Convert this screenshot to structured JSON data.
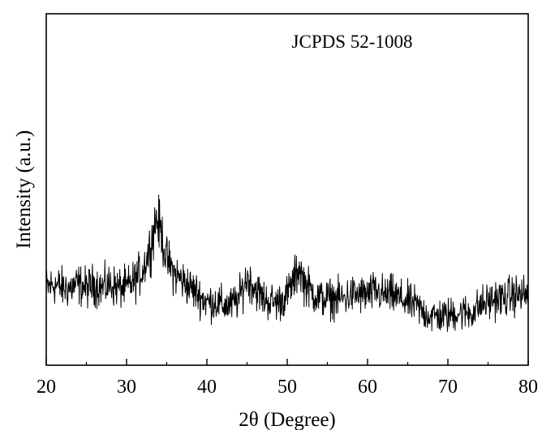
{
  "chart_data": {
    "type": "line",
    "title": "",
    "annotation": "JCPDS 52-1008",
    "xlabel": "2θ (Degree)",
    "ylabel": "Intensity (a.u.)",
    "xlim": [
      20,
      80
    ],
    "ylim": [
      0,
      100
    ],
    "x_ticks": [
      20,
      30,
      40,
      50,
      60,
      70,
      80
    ],
    "x_tick_labels": [
      "20",
      "30",
      "40",
      "50",
      "60",
      "70",
      "80"
    ],
    "y_ticks_shown": false,
    "grid": false,
    "legend": "none",
    "line_color": "#000000",
    "series": [
      {
        "points": [
          [
            20,
            22
          ],
          [
            21,
            23
          ],
          [
            22,
            22
          ],
          [
            23,
            22
          ],
          [
            24,
            23
          ],
          [
            25,
            22
          ],
          [
            26,
            23
          ],
          [
            27,
            22
          ],
          [
            28,
            23
          ],
          [
            29,
            22
          ],
          [
            30,
            22
          ],
          [
            31,
            24
          ],
          [
            32,
            27
          ],
          [
            33,
            34
          ],
          [
            33.7,
            42
          ],
          [
            34.3,
            38
          ],
          [
            35,
            30
          ],
          [
            36,
            26
          ],
          [
            37,
            24
          ],
          [
            38,
            22
          ],
          [
            39,
            20
          ],
          [
            40,
            18
          ],
          [
            41,
            18
          ],
          [
            42,
            17
          ],
          [
            43,
            17
          ],
          [
            44,
            19
          ],
          [
            45,
            25
          ],
          [
            46,
            22
          ],
          [
            47,
            19
          ],
          [
            48,
            18
          ],
          [
            49,
            18
          ],
          [
            50,
            20
          ],
          [
            51,
            25
          ],
          [
            51.5,
            28
          ],
          [
            52,
            24
          ],
          [
            53,
            21
          ],
          [
            54,
            19
          ],
          [
            55,
            19
          ],
          [
            56,
            19
          ],
          [
            57,
            19
          ],
          [
            58,
            20
          ],
          [
            59,
            20
          ],
          [
            60,
            20
          ],
          [
            61,
            21
          ],
          [
            62,
            20
          ],
          [
            63,
            20
          ],
          [
            64,
            19
          ],
          [
            65,
            18
          ],
          [
            66,
            17
          ],
          [
            67,
            15
          ],
          [
            68,
            14
          ],
          [
            69,
            14
          ],
          [
            70,
            14
          ],
          [
            71,
            15
          ],
          [
            72,
            15
          ],
          [
            73,
            15
          ],
          [
            74,
            17
          ],
          [
            75,
            18
          ],
          [
            76,
            19
          ],
          [
            77,
            19
          ],
          [
            78,
            20
          ],
          [
            79,
            20
          ],
          [
            80,
            20
          ]
        ]
      }
    ]
  }
}
